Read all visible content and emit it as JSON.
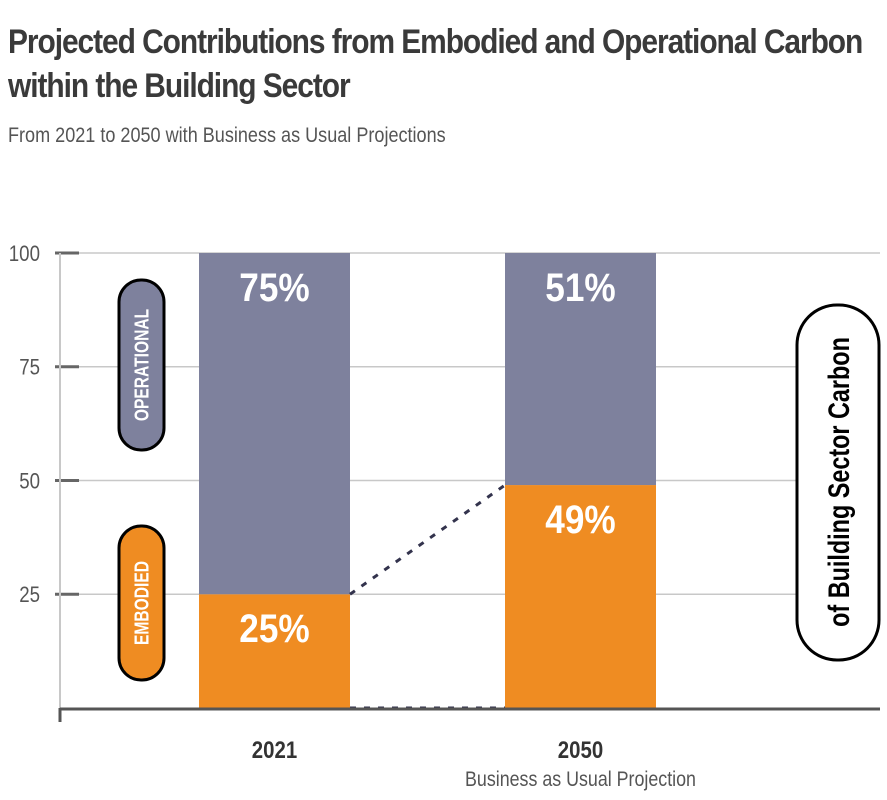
{
  "chart_data": {
    "type": "bar",
    "stacked": true,
    "title": "Projected Contributions from Embodied and Operational Carbon within the Building Sector",
    "subtitle": "From 2021 to 2050 with Business as Usual Projections",
    "categories": [
      "2021",
      "2050"
    ],
    "category_sublabels": [
      "",
      "Business as Usual Projection"
    ],
    "series": [
      {
        "name": "EMBODIED",
        "values": [
          25,
          49
        ],
        "labels": [
          "25%",
          "49%"
        ],
        "color": "#ef8c22"
      },
      {
        "name": "OPERATIONAL",
        "values": [
          75,
          51
        ],
        "labels": [
          "75%",
          "51%"
        ],
        "color": "#7e819d"
      }
    ],
    "ylabel": "of Building Sector Carbon",
    "ylim": [
      0,
      100
    ],
    "yticks": [
      25,
      50,
      75,
      100
    ],
    "grid": true,
    "connector_style": "dotted"
  }
}
